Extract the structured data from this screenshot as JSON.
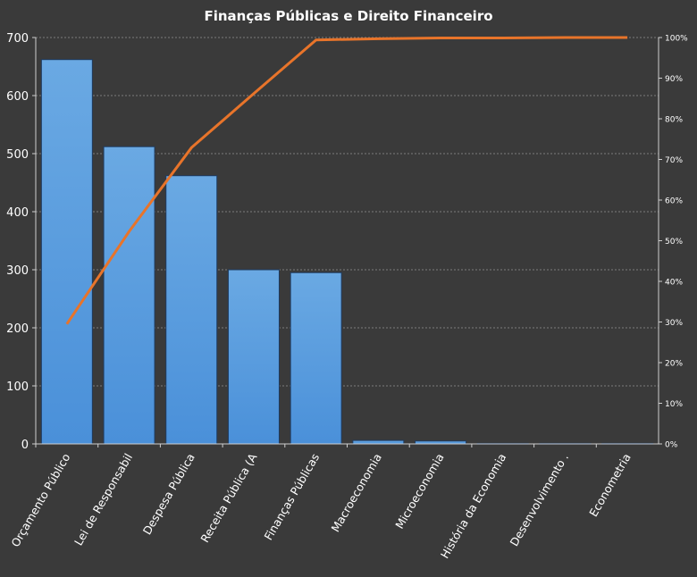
{
  "chart_data": {
    "type": "bar",
    "title": "Finanças Públicas e Direito Financeiro",
    "categories": [
      "Orçamento Público",
      "Lei de Responsabil",
      "Despesa Pública",
      "Receita Pública (A",
      "Finanças Públicas",
      "Macroeconomia",
      "Microeconomia",
      "História da Economia",
      "Desenvolvimento .",
      "Econometria"
    ],
    "series": [
      {
        "type": "bar",
        "axis": "left",
        "values": [
          662,
          512,
          462,
          300,
          295,
          6,
          5,
          1,
          1,
          1
        ]
      },
      {
        "type": "line",
        "axis": "right",
        "values": [
          0.295,
          0.523,
          0.729,
          0.862,
          0.994,
          0.997,
          0.999,
          0.999,
          1.0,
          1.0
        ]
      }
    ],
    "ylim": [
      0,
      700
    ],
    "yticks": [
      "0",
      "100",
      "200",
      "300",
      "400",
      "500",
      "600",
      "700"
    ],
    "y2lim": [
      0,
      1
    ],
    "y2ticks": [
      "0%",
      "10%",
      "20%",
      "30%",
      "40%",
      "50%",
      "60%",
      "70%",
      "80%",
      "90%",
      "100%"
    ],
    "grid": true,
    "legend": "none",
    "colors": {
      "background": "#3a3a3a",
      "bar": "#4a90d9",
      "bar_light": "#6aa9e3",
      "line": "#e8742a",
      "grid": "#bdbdbd",
      "text": "#ffffff"
    }
  }
}
